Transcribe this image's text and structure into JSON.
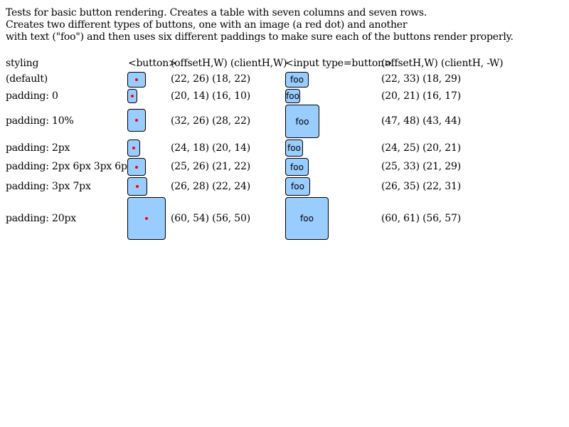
{
  "intro": {
    "line1": "Tests for basic button rendering. Creates a table with seven columns and seven rows.",
    "line2": "Creates two different types of buttons, one with an image (a red dot) and another",
    "line3": "with text (\"foo\") and then uses six different paddings to make sure each of the buttons render properly."
  },
  "table": {
    "headers": {
      "styling": "styling",
      "button": "<button>",
      "button_metrics": "(offsetH,W) (clientH,W)",
      "input": "<input type=button>",
      "input_metrics": "(offsetH,W) (clientH, -W)"
    },
    "rows": [
      {
        "styling": "(default)",
        "button_metrics": "(22, 26) (18, 22)",
        "input_label": "foo",
        "input_metrics": "(22, 33) (18, 29)"
      },
      {
        "styling": "padding: 0",
        "button_metrics": "(20, 14) (16, 10)",
        "input_label": "foo",
        "input_metrics": "(20, 21) (16, 17)"
      },
      {
        "styling": "padding: 10%",
        "button_metrics": "(32, 26) (28, 22)",
        "input_label": "foo",
        "input_metrics": "(47, 48) (43, 44)"
      },
      {
        "styling": "padding: 2px",
        "button_metrics": "(24, 18) (20, 14)",
        "input_label": "foo",
        "input_metrics": "(24, 25) (20, 21)"
      },
      {
        "styling": "padding: 2px 6px 3px 6px",
        "button_metrics": "(25, 26) (21, 22)",
        "input_label": "foo",
        "input_metrics": "(25, 33) (21, 29)"
      },
      {
        "styling": "padding: 3px 7px",
        "button_metrics": "(26, 28) (22, 24)",
        "input_label": "foo",
        "input_metrics": "(26, 35) (22, 31)"
      },
      {
        "styling": "padding: 20px",
        "button_metrics": "(60, 54) (56, 50)",
        "input_label": "foo",
        "input_metrics": "(60, 61) (56, 57)"
      }
    ]
  },
  "colors": {
    "button_face": "#99ccff",
    "dot": "#ff0000"
  }
}
